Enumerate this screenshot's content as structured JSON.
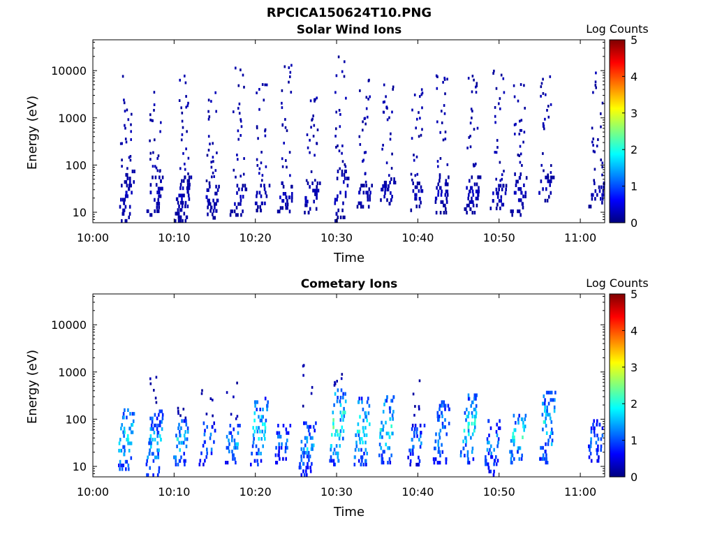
{
  "figure": {
    "title": "RPCICA150624T10.PNG"
  },
  "colorbar": {
    "stops": [
      "#00007f",
      "#0000ff",
      "#007fff",
      "#00ffff",
      "#7fff7f",
      "#ffff00",
      "#ff7f00",
      "#ff0000",
      "#7f0000"
    ]
  },
  "chart_data": [
    {
      "type": "heatmap",
      "title": "Solar Wind Ions",
      "xlabel": "Time",
      "ylabel": "Energy (eV)",
      "x_ticks": [
        "10:00",
        "10:10",
        "10:20",
        "10:30",
        "10:40",
        "10:50",
        "11:00"
      ],
      "y_ticks": [
        "10",
        "100",
        "1000",
        "10000"
      ],
      "y_scale": "log",
      "ylim": [
        6,
        45000
      ],
      "xlim_minutes": [
        0,
        63
      ],
      "colorbar": {
        "label": "Log Counts",
        "range": [
          0,
          5
        ],
        "ticks": [
          "0",
          "1",
          "2",
          "3",
          "4",
          "5"
        ]
      },
      "bursts": [
        {
          "t": 3.7,
          "emin": 6,
          "emax": 80,
          "ehi": 8000,
          "v": 0.3
        },
        {
          "t": 7.3,
          "emin": 8,
          "emax": 60,
          "ehi": 3500,
          "v": 0.3
        },
        {
          "t": 10.7,
          "emin": 6,
          "emax": 60,
          "ehi": 9000,
          "v": 0.3
        },
        {
          "t": 14.3,
          "emin": 7,
          "emax": 45,
          "ehi": 4500,
          "v": 0.3
        },
        {
          "t": 17.6,
          "emin": 8,
          "emax": 40,
          "ehi": 13000,
          "v": 0.3
        },
        {
          "t": 20.4,
          "emin": 10,
          "emax": 40,
          "ehi": 6000,
          "v": 0.3
        },
        {
          "t": 23.4,
          "emin": 8,
          "emax": 45,
          "ehi": 13000,
          "v": 0.3
        },
        {
          "t": 26.6,
          "emin": 9,
          "emax": 45,
          "ehi": 6000,
          "v": 0.3
        },
        {
          "t": 30.1,
          "emin": 6,
          "emax": 80,
          "ehi": 25000,
          "v": 0.3
        },
        {
          "t": 33.1,
          "emin": 12,
          "emax": 40,
          "ehi": 9500,
          "v": 0.3
        },
        {
          "t": 35.9,
          "emin": 14,
          "emax": 55,
          "ehi": 9500,
          "v": 0.3
        },
        {
          "t": 39.5,
          "emin": 10,
          "emax": 45,
          "ehi": 12000,
          "v": 0.3
        },
        {
          "t": 42.6,
          "emin": 9,
          "emax": 60,
          "ehi": 8000,
          "v": 0.3
        },
        {
          "t": 46.3,
          "emin": 9,
          "emax": 60,
          "ehi": 9000,
          "v": 0.3
        },
        {
          "t": 49.6,
          "emin": 11,
          "emax": 40,
          "ehi": 10000,
          "v": 0.3
        },
        {
          "t": 52.1,
          "emin": 8,
          "emax": 70,
          "ehi": 9000,
          "v": 0.3
        },
        {
          "t": 55.4,
          "emin": 16,
          "emax": 60,
          "ehi": 9500,
          "v": 0.3
        },
        {
          "t": 61.7,
          "emin": 12,
          "emax": 45,
          "ehi": 11000,
          "v": 0.3
        }
      ]
    },
    {
      "type": "heatmap",
      "title": "Cometary Ions",
      "xlabel": "Time",
      "ylabel": "Energy (eV)",
      "x_ticks": [
        "10:00",
        "10:10",
        "10:20",
        "10:30",
        "10:40",
        "10:50",
        "11:00"
      ],
      "y_ticks": [
        "10",
        "100",
        "1000",
        "10000"
      ],
      "y_scale": "log",
      "ylim": [
        6,
        45000
      ],
      "xlim_minutes": [
        0,
        63
      ],
      "colorbar": {
        "label": "Log Counts",
        "range": [
          0,
          5
        ],
        "ticks": [
          "0",
          "1",
          "2",
          "3",
          "4",
          "5"
        ]
      },
      "bursts": [
        {
          "t": 3.7,
          "emin": 8,
          "emax": 170,
          "ehi": 170,
          "v": 1.8
        },
        {
          "t": 7.2,
          "emin": 6,
          "emax": 160,
          "ehi": 900,
          "v": 1.5
        },
        {
          "t": 10.5,
          "emin": 10,
          "emax": 100,
          "ehi": 200,
          "v": 1.7
        },
        {
          "t": 13.7,
          "emin": 10,
          "emax": 90,
          "ehi": 450,
          "v": 1.3
        },
        {
          "t": 16.8,
          "emin": 11,
          "emax": 80,
          "ehi": 800,
          "v": 1.4
        },
        {
          "t": 20.1,
          "emin": 10,
          "emax": 300,
          "ehi": 300,
          "v": 1.7
        },
        {
          "t": 22.9,
          "emin": 11,
          "emax": 80,
          "ehi": 80,
          "v": 1.2
        },
        {
          "t": 26.0,
          "emin": 6,
          "emax": 90,
          "ehi": 1600,
          "v": 1.5
        },
        {
          "t": 29.8,
          "emin": 10,
          "emax": 450,
          "ehi": 900,
          "v": 2.0
        },
        {
          "t": 32.8,
          "emin": 10,
          "emax": 300,
          "ehi": 300,
          "v": 1.8
        },
        {
          "t": 35.8,
          "emin": 11,
          "emax": 320,
          "ehi": 320,
          "v": 1.8
        },
        {
          "t": 39.4,
          "emin": 10,
          "emax": 80,
          "ehi": 800,
          "v": 1.2
        },
        {
          "t": 42.6,
          "emin": 11,
          "emax": 250,
          "ehi": 250,
          "v": 1.5
        },
        {
          "t": 45.9,
          "emin": 11,
          "emax": 350,
          "ehi": 350,
          "v": 1.8
        },
        {
          "t": 48.8,
          "emin": 6,
          "emax": 100,
          "ehi": 100,
          "v": 1.3
        },
        {
          "t": 51.9,
          "emin": 11,
          "emax": 130,
          "ehi": 130,
          "v": 1.8
        },
        {
          "t": 55.5,
          "emin": 11,
          "emax": 400,
          "ehi": 400,
          "v": 1.7
        },
        {
          "t": 61.5,
          "emin": 12,
          "emax": 100,
          "ehi": 100,
          "v": 1.2
        }
      ]
    }
  ]
}
